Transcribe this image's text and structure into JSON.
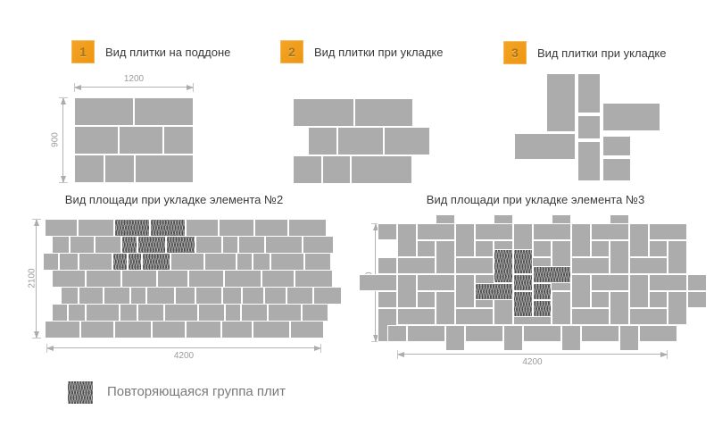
{
  "colors": {
    "tile_gray": "#ACACAC",
    "joint_white": "#FFFFFF",
    "hatch_dark": "#4F4F4F",
    "accent_orange": "#F09C1B",
    "dim_gray": "#ACACAC",
    "title_text": "#3A3A3A",
    "legend_text": "#7A7A7A"
  },
  "headers": [
    {
      "num": "1",
      "label": "Вид плитки на поддоне"
    },
    {
      "num": "2",
      "label": "Вид плитки при укладке"
    },
    {
      "num": "3",
      "label": "Вид плитки при укладке"
    }
  ],
  "section_titles": {
    "area2": "Вид площади при укладке элемента №2",
    "area3": "Вид площади при укладке элемента №3"
  },
  "dims": {
    "pallet_w": "1200",
    "pallet_h": "900",
    "area_h": "2100",
    "area_w": "4200"
  },
  "legend": {
    "label": "Повторяющаяся группа плит"
  },
  "diagrams": {
    "pallet": {
      "ox": 0,
      "oy": 0,
      "sx": 1,
      "sy": 1,
      "tiles": [
        [
          43,
          24,
          67,
          32
        ],
        [
          110,
          24,
          67,
          32
        ],
        [
          43,
          56,
          50,
          32
        ],
        [
          93,
          56,
          50,
          32
        ],
        [
          143,
          56,
          34,
          32
        ],
        [
          43,
          88,
          34,
          32
        ],
        [
          77,
          88,
          34,
          32
        ],
        [
          111,
          88,
          66,
          32
        ]
      ]
    },
    "layout2": {
      "ox": 0,
      "oy": 0,
      "sx": 1,
      "sy": 1,
      "tiles": [
        [
          28,
          25,
          69,
          32
        ],
        [
          97,
          25,
          66,
          32
        ],
        [
          45,
          57,
          33,
          32
        ],
        [
          78,
          57,
          52,
          32
        ],
        [
          130,
          57,
          52,
          32
        ],
        [
          28,
          89,
          33,
          32
        ],
        [
          61,
          89,
          32,
          32
        ],
        [
          93,
          89,
          69,
          32
        ]
      ]
    },
    "layout3": {
      "ox": 0,
      "oy": 0,
      "sx": 1,
      "sy": 1,
      "tiles": [
        [
          62,
          7,
          33,
          66
        ],
        [
          97,
          7,
          26,
          45
        ],
        [
          97,
          54,
          26,
          27
        ],
        [
          125,
          40,
          65,
          32
        ],
        [
          26,
          74,
          69,
          30
        ],
        [
          97,
          83,
          26,
          45
        ],
        [
          125,
          77,
          32,
          23
        ],
        [
          125,
          102,
          32,
          26
        ]
      ]
    },
    "area2": {
      "ox": 0,
      "oy": 0,
      "sx": 1,
      "sy": 1,
      "tiles": [
        [
          20,
          5,
          37,
          20
        ],
        [
          57,
          5,
          41,
          20
        ],
        [
          98,
          5,
          40,
          20,
          1
        ],
        [
          138,
          5,
          40,
          20,
          1
        ],
        [
          178,
          5,
          37,
          20
        ],
        [
          215,
          5,
          40,
          20
        ],
        [
          255,
          5,
          38,
          20
        ],
        [
          293,
          5,
          43,
          20
        ],
        [
          28,
          24,
          20,
          20
        ],
        [
          48,
          24,
          28,
          20
        ],
        [
          76,
          24,
          30,
          20
        ],
        [
          106,
          24,
          18,
          20,
          1
        ],
        [
          124,
          24,
          32,
          20,
          1
        ],
        [
          156,
          24,
          33,
          20,
          1
        ],
        [
          189,
          24,
          30,
          20
        ],
        [
          219,
          24,
          18,
          20
        ],
        [
          237,
          24,
          30,
          20
        ],
        [
          267,
          24,
          42,
          20
        ],
        [
          309,
          24,
          35,
          20
        ],
        [
          18,
          43,
          18,
          20
        ],
        [
          36,
          43,
          22,
          20
        ],
        [
          58,
          43,
          38,
          20
        ],
        [
          96,
          43,
          17,
          20,
          1
        ],
        [
          113,
          43,
          16,
          20,
          1
        ],
        [
          129,
          43,
          32,
          20,
          1
        ],
        [
          161,
          43,
          38,
          20
        ],
        [
          199,
          43,
          36,
          20
        ],
        [
          235,
          43,
          18,
          20
        ],
        [
          253,
          43,
          20,
          20
        ],
        [
          273,
          43,
          38,
          20
        ],
        [
          311,
          43,
          30,
          20
        ],
        [
          28,
          62,
          38,
          20
        ],
        [
          66,
          62,
          40,
          20
        ],
        [
          106,
          62,
          40,
          20
        ],
        [
          146,
          62,
          35,
          20
        ],
        [
          181,
          62,
          40,
          20
        ],
        [
          221,
          62,
          42,
          20
        ],
        [
          263,
          62,
          37,
          20
        ],
        [
          300,
          62,
          43,
          20
        ],
        [
          38,
          81,
          20,
          20
        ],
        [
          58,
          81,
          28,
          20
        ],
        [
          86,
          81,
          30,
          20
        ],
        [
          116,
          81,
          18,
          20
        ],
        [
          134,
          81,
          32,
          20
        ],
        [
          166,
          81,
          23,
          20
        ],
        [
          189,
          81,
          30,
          20
        ],
        [
          219,
          81,
          22,
          20
        ],
        [
          241,
          81,
          25,
          20
        ],
        [
          266,
          81,
          25,
          20
        ],
        [
          291,
          81,
          30,
          20
        ],
        [
          321,
          81,
          32,
          20
        ],
        [
          28,
          100,
          18,
          20
        ],
        [
          46,
          100,
          20,
          20
        ],
        [
          66,
          100,
          38,
          20
        ],
        [
          104,
          100,
          20,
          20
        ],
        [
          124,
          100,
          30,
          20
        ],
        [
          154,
          100,
          38,
          20
        ],
        [
          192,
          100,
          30,
          20
        ],
        [
          222,
          100,
          18,
          20
        ],
        [
          240,
          100,
          30,
          20
        ],
        [
          270,
          100,
          38,
          20
        ],
        [
          308,
          100,
          30,
          20
        ],
        [
          20,
          119,
          40,
          20
        ],
        [
          60,
          119,
          38,
          20
        ],
        [
          98,
          119,
          42,
          20
        ],
        [
          140,
          119,
          38,
          20
        ],
        [
          178,
          119,
          40,
          20
        ],
        [
          218,
          119,
          35,
          20
        ],
        [
          253,
          119,
          42,
          20
        ],
        [
          295,
          119,
          38,
          20
        ]
      ]
    },
    "area3": {
      "ox": 50,
      "oy": 12,
      "sx": 0.0722,
      "sy": 0.0635,
      "tiles": [
        [
          600,
          -150,
          300,
          450
        ],
        [
          1500,
          -150,
          300,
          450
        ],
        [
          2400,
          -150,
          300,
          450
        ],
        [
          3300,
          -150,
          300,
          450
        ],
        [
          -300,
          0,
          300,
          300
        ],
        [
          -300,
          600,
          300,
          300
        ],
        [
          -600,
          900,
          600,
          300
        ],
        [
          -300,
          1200,
          300,
          300
        ],
        [
          -300,
          1500,
          300,
          600
        ],
        [
          4500,
          900,
          300,
          300
        ],
        [
          4500,
          1200,
          300,
          300
        ],
        [
          0,
          0,
          300,
          600
        ],
        [
          300,
          0,
          600,
          300
        ],
        [
          600,
          300,
          300,
          600
        ],
        [
          0,
          600,
          600,
          300
        ],
        [
          300,
          300,
          300,
          300
        ],
        [
          900,
          0,
          300,
          600
        ],
        [
          1200,
          0,
          600,
          300
        ],
        [
          1500,
          300,
          300,
          600
        ],
        [
          900,
          600,
          600,
          300
        ],
        [
          1200,
          300,
          300,
          300
        ],
        [
          1800,
          0,
          300,
          600
        ],
        [
          2100,
          0,
          600,
          300
        ],
        [
          2400,
          300,
          300,
          600
        ],
        [
          1800,
          600,
          600,
          300
        ],
        [
          2100,
          300,
          300,
          300
        ],
        [
          2700,
          0,
          300,
          600
        ],
        [
          3000,
          0,
          600,
          300
        ],
        [
          3300,
          300,
          300,
          600
        ],
        [
          2700,
          600,
          600,
          300
        ],
        [
          3000,
          300,
          300,
          300
        ],
        [
          3600,
          0,
          300,
          600
        ],
        [
          3900,
          0,
          600,
          300
        ],
        [
          4200,
          300,
          300,
          600
        ],
        [
          3600,
          600,
          600,
          300
        ],
        [
          3900,
          300,
          300,
          300
        ],
        [
          0,
          900,
          300,
          600
        ],
        [
          300,
          900,
          600,
          300
        ],
        [
          600,
          1200,
          300,
          600
        ],
        [
          0,
          1500,
          600,
          300
        ],
        [
          300,
          1200,
          300,
          300
        ],
        [
          900,
          900,
          300,
          600
        ],
        [
          1200,
          900,
          600,
          300
        ],
        [
          1500,
          1200,
          300,
          600
        ],
        [
          900,
          1500,
          600,
          300
        ],
        [
          1200,
          1200,
          300,
          300
        ],
        [
          1800,
          900,
          300,
          600
        ],
        [
          2100,
          900,
          600,
          300
        ],
        [
          2400,
          1200,
          300,
          600
        ],
        [
          1800,
          1500,
          600,
          300
        ],
        [
          2100,
          1200,
          300,
          300
        ],
        [
          2700,
          900,
          300,
          600
        ],
        [
          3000,
          900,
          600,
          300
        ],
        [
          3300,
          1200,
          300,
          600
        ],
        [
          2700,
          1500,
          600,
          300
        ],
        [
          3000,
          1200,
          300,
          300
        ],
        [
          3600,
          900,
          300,
          600
        ],
        [
          3900,
          900,
          600,
          300
        ],
        [
          4200,
          1200,
          300,
          600
        ],
        [
          3600,
          1500,
          600,
          300
        ],
        [
          3900,
          1200,
          300,
          300
        ],
        [
          -150,
          1800,
          300,
          300
        ],
        [
          150,
          1800,
          600,
          300
        ],
        [
          750,
          1800,
          300,
          450
        ],
        [
          1050,
          1800,
          600,
          300
        ],
        [
          1650,
          1800,
          300,
          450
        ],
        [
          1950,
          1800,
          600,
          300
        ],
        [
          2550,
          1800,
          300,
          450
        ],
        [
          2850,
          1800,
          600,
          300
        ],
        [
          3450,
          1800,
          300,
          450
        ],
        [
          3750,
          1800,
          600,
          300
        ],
        [
          1500,
          450,
          300,
          600,
          1
        ],
        [
          1800,
          450,
          300,
          450,
          1
        ],
        [
          1800,
          900,
          300,
          300,
          1
        ],
        [
          2100,
          750,
          600,
          300,
          1
        ],
        [
          1200,
          1050,
          600,
          300,
          1
        ],
        [
          1800,
          1200,
          300,
          450,
          1
        ],
        [
          2100,
          1050,
          300,
          300,
          1
        ],
        [
          2100,
          1350,
          300,
          300,
          1
        ]
      ]
    }
  }
}
